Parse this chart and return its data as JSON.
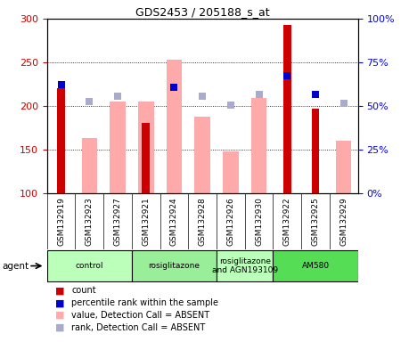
{
  "title": "GDS2453 / 205188_s_at",
  "samples": [
    "GSM132919",
    "GSM132923",
    "GSM132927",
    "GSM132921",
    "GSM132924",
    "GSM132928",
    "GSM132926",
    "GSM132930",
    "GSM132922",
    "GSM132925",
    "GSM132929"
  ],
  "count_values": [
    220,
    null,
    null,
    181,
    null,
    null,
    null,
    null,
    293,
    197,
    null
  ],
  "count_color": "#cc0000",
  "absent_value_bars": [
    null,
    163,
    205,
    205,
    253,
    188,
    148,
    209,
    null,
    null,
    160
  ],
  "absent_value_color": "#ffaaaa",
  "percentile_rank_present": [
    225,
    null,
    null,
    null,
    221,
    null,
    null,
    null,
    235,
    213,
    null
  ],
  "percentile_rank_color": "#0000cc",
  "absent_rank_bars": [
    null,
    205,
    211,
    null,
    221,
    211,
    201,
    213,
    null,
    null,
    203
  ],
  "absent_rank_color": "#aaaacc",
  "ylim_left": [
    100,
    300
  ],
  "ylim_right": [
    0,
    100
  ],
  "yticks_left": [
    100,
    150,
    200,
    250,
    300
  ],
  "yticks_right": [
    0,
    25,
    50,
    75,
    100
  ],
  "right_tick_labels": [
    "0%",
    "25%",
    "50%",
    "75%",
    "100%"
  ],
  "agent_groups": [
    {
      "label": "control",
      "start": 0,
      "end": 2,
      "color": "#bbffbb"
    },
    {
      "label": "rosiglitazone",
      "start": 3,
      "end": 5,
      "color": "#99ee99"
    },
    {
      "label": "rosiglitazone\nand AGN193109",
      "start": 6,
      "end": 7,
      "color": "#bbffbb"
    },
    {
      "label": "AM580",
      "start": 8,
      "end": 10,
      "color": "#55dd55"
    }
  ],
  "legend_items": [
    {
      "label": "count",
      "color": "#cc0000"
    },
    {
      "label": "percentile rank within the sample",
      "color": "#0000cc"
    },
    {
      "label": "value, Detection Call = ABSENT",
      "color": "#ffaaaa"
    },
    {
      "label": "rank, Detection Call = ABSENT",
      "color": "#aaaacc"
    }
  ],
  "grid_lines": [
    150,
    200,
    250
  ],
  "sample_box_color": "#d0d0d0",
  "plot_bg_color": "#ffffff"
}
